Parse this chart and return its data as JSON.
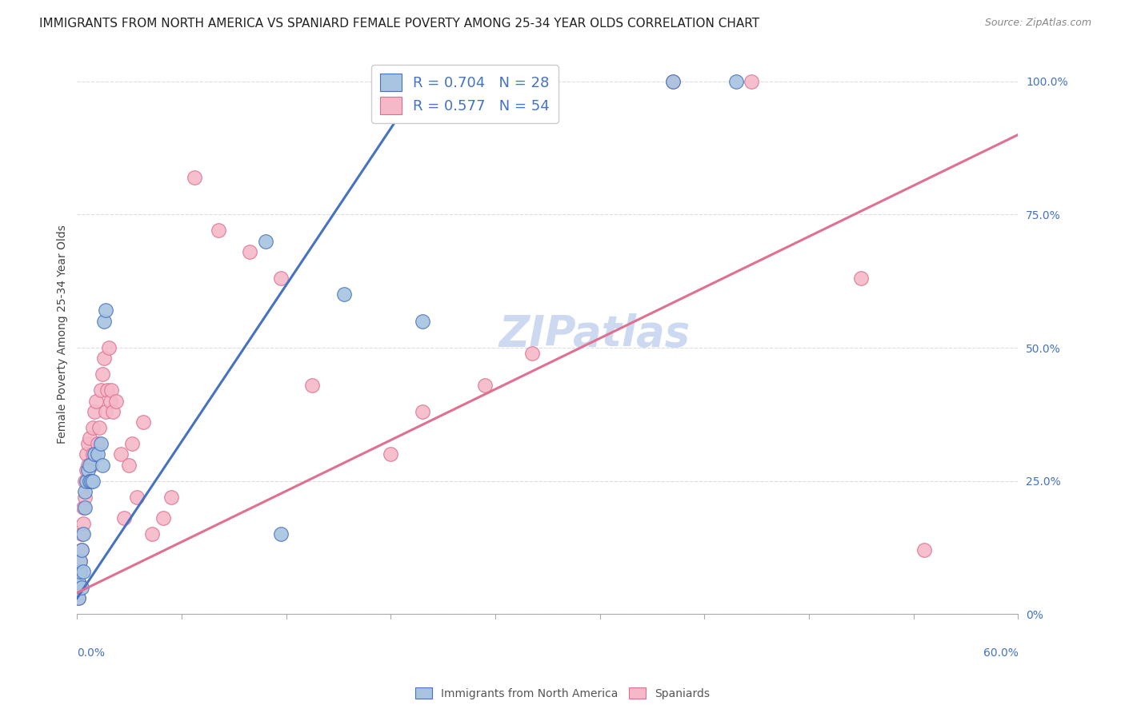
{
  "title": "IMMIGRANTS FROM NORTH AMERICA VS SPANIARD FEMALE POVERTY AMONG 25-34 YEAR OLDS CORRELATION CHART",
  "source": "Source: ZipAtlas.com",
  "ylabel": "Female Poverty Among 25-34 Year Olds",
  "right_ytick_vals": [
    0.0,
    0.25,
    0.5,
    0.75,
    1.0
  ],
  "right_ytick_labels": [
    "0%",
    "25.0%",
    "50.0%",
    "75.0%",
    "100.0%"
  ],
  "R_blue": 0.704,
  "N_blue": 28,
  "R_pink": 0.577,
  "N_pink": 54,
  "blue_color": "#a8c4e0",
  "blue_line_color": "#4472c4",
  "pink_color": "#f4b8c8",
  "pink_line_color": "#e07090",
  "watermark": "ZIPatlas",
  "watermark_color": "#ccd9f0",
  "blue_x": [
    0.001,
    0.001,
    0.002,
    0.002,
    0.003,
    0.003,
    0.004,
    0.004,
    0.005,
    0.005,
    0.006,
    0.007,
    0.008,
    0.008,
    0.009,
    0.01,
    0.011,
    0.013,
    0.015,
    0.016,
    0.017,
    0.018,
    0.12,
    0.17,
    0.22,
    0.38,
    0.42,
    0.13
  ],
  "blue_y": [
    0.03,
    0.06,
    0.08,
    0.1,
    0.05,
    0.12,
    0.08,
    0.15,
    0.2,
    0.23,
    0.25,
    0.27,
    0.28,
    0.25,
    0.25,
    0.25,
    0.3,
    0.3,
    0.32,
    0.28,
    0.55,
    0.57,
    0.7,
    0.6,
    0.55,
    1.0,
    1.0,
    0.15
  ],
  "pink_x": [
    0.001,
    0.001,
    0.002,
    0.002,
    0.003,
    0.003,
    0.004,
    0.004,
    0.005,
    0.005,
    0.006,
    0.006,
    0.007,
    0.007,
    0.008,
    0.009,
    0.01,
    0.01,
    0.011,
    0.012,
    0.013,
    0.014,
    0.015,
    0.016,
    0.017,
    0.018,
    0.019,
    0.02,
    0.021,
    0.022,
    0.023,
    0.025,
    0.028,
    0.03,
    0.033,
    0.035,
    0.038,
    0.042,
    0.048,
    0.055,
    0.06,
    0.075,
    0.09,
    0.11,
    0.13,
    0.15,
    0.2,
    0.22,
    0.26,
    0.29,
    0.38,
    0.43,
    0.5,
    0.54
  ],
  "pink_y": [
    0.03,
    0.06,
    0.08,
    0.1,
    0.12,
    0.15,
    0.17,
    0.2,
    0.22,
    0.25,
    0.27,
    0.3,
    0.28,
    0.32,
    0.33,
    0.28,
    0.35,
    0.3,
    0.38,
    0.4,
    0.32,
    0.35,
    0.42,
    0.45,
    0.48,
    0.38,
    0.42,
    0.5,
    0.4,
    0.42,
    0.38,
    0.4,
    0.3,
    0.18,
    0.28,
    0.32,
    0.22,
    0.36,
    0.15,
    0.18,
    0.22,
    0.82,
    0.72,
    0.68,
    0.63,
    0.43,
    0.3,
    0.38,
    0.43,
    0.49,
    1.0,
    1.0,
    0.63,
    0.12
  ],
  "blue_line_x": [
    0.0,
    0.22
  ],
  "blue_line_y": [
    0.03,
    1.0
  ],
  "pink_line_x": [
    0.0,
    0.6
  ],
  "pink_line_y": [
    0.04,
    0.9
  ],
  "xmin": 0.0,
  "xmax": 0.6,
  "ymin": 0.0,
  "ymax": 1.05,
  "figsize": [
    14.06,
    8.92
  ],
  "dpi": 100,
  "background_color": "#ffffff",
  "grid_color": "#dddddd",
  "title_fontsize": 11,
  "source_fontsize": 9,
  "axis_label_fontsize": 10,
  "tick_fontsize": 10,
  "legend_fontsize": 13,
  "watermark_fontsize": 38
}
